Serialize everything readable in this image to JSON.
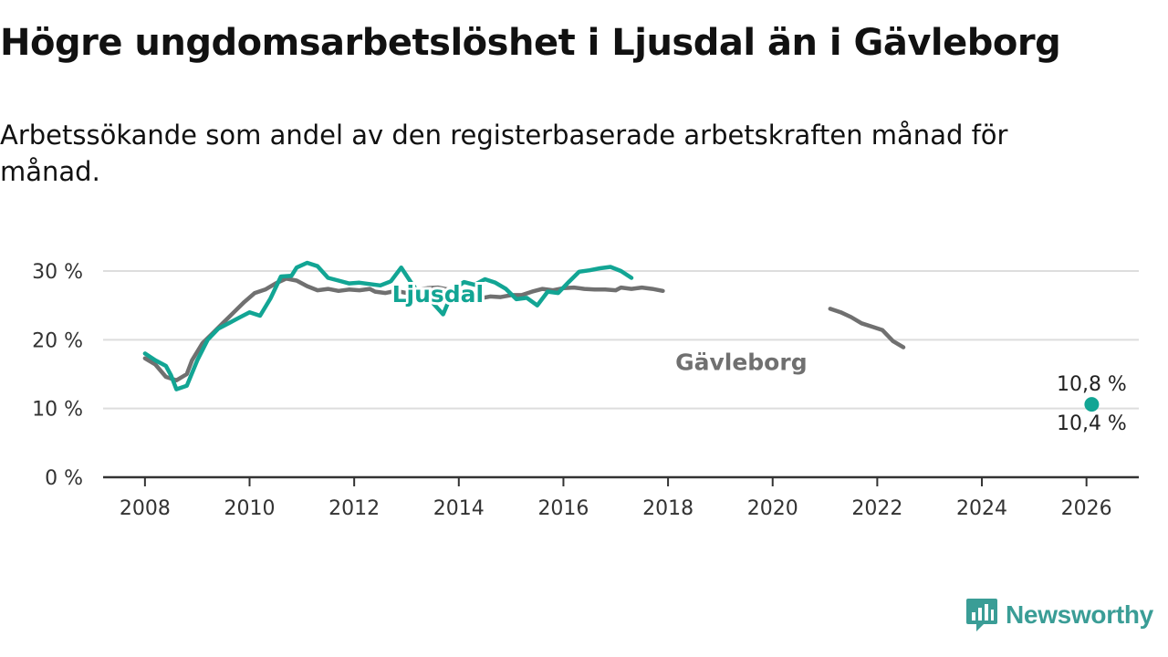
{
  "header": {
    "title": "Högre ungdomsarbetslöshet i Ljusdal än i Gävleborg",
    "subtitle": "Arbetssökande som andel av den registerbaserade arbetskraften månad för månad."
  },
  "brand": {
    "name": "Newsworthy",
    "icon": "newsworthy-logo-icon"
  },
  "colors": {
    "ljusdal": "#12a594",
    "gavleborg": "#707070",
    "grid": "#dddddd",
    "axis": "#333333"
  },
  "chart_data": {
    "type": "line",
    "title": "Högre ungdomsarbetslöshet i Ljusdal än i Gävleborg",
    "xlim": [
      2007.2,
      2027.0
    ],
    "ylim": [
      0,
      30
    ],
    "x_ticks": [
      2008,
      2010,
      2012,
      2014,
      2016,
      2018,
      2020,
      2022,
      2024,
      2026
    ],
    "x_tick_labels": [
      "2008",
      "2010",
      "2012",
      "2014",
      "2016",
      "2018",
      "2020",
      "2022",
      "2024",
      "2026"
    ],
    "y_ticks": [
      0,
      10,
      20,
      30
    ],
    "y_tick_labels": [
      "0 %",
      "10 %",
      "20 %",
      "30 %"
    ],
    "grid": true,
    "series": [
      {
        "name": "Gävleborg",
        "color": "#707070",
        "label": {
          "text": "Gävleborg",
          "x": 2019.4,
          "y": 15.6
        },
        "end_label": "10,4 %",
        "segments": [
          [
            [
              2008.0,
              17.3
            ],
            [
              2008.2,
              16.4
            ],
            [
              2008.4,
              14.6
            ],
            [
              2008.6,
              14.1
            ],
            [
              2008.8,
              15.0
            ],
            [
              2008.9,
              17.0
            ],
            [
              2009.1,
              19.5
            ],
            [
              2009.3,
              21.0
            ],
            [
              2009.5,
              22.5
            ],
            [
              2009.7,
              24.0
            ],
            [
              2009.9,
              25.5
            ],
            [
              2010.1,
              26.8
            ],
            [
              2010.3,
              27.3
            ],
            [
              2010.5,
              28.2
            ],
            [
              2010.7,
              28.9
            ],
            [
              2010.9,
              28.6
            ],
            [
              2011.1,
              27.8
            ],
            [
              2011.3,
              27.2
            ],
            [
              2011.5,
              27.4
            ],
            [
              2011.7,
              27.1
            ],
            [
              2011.9,
              27.3
            ],
            [
              2012.1,
              27.2
            ],
            [
              2012.3,
              27.4
            ],
            [
              2012.4,
              27.0
            ],
            [
              2012.6,
              26.8
            ],
            [
              2012.8,
              27.1
            ],
            [
              2013.0,
              26.8
            ],
            [
              2013.2,
              27.3
            ],
            [
              2013.4,
              27.5
            ],
            [
              2013.6,
              27.6
            ],
            [
              2013.8,
              27.3
            ],
            [
              2014.0,
              27.0
            ],
            [
              2014.2,
              26.5
            ],
            [
              2014.4,
              26.0
            ],
            [
              2014.6,
              26.3
            ],
            [
              2014.8,
              26.2
            ],
            [
              2015.0,
              26.5
            ],
            [
              2015.2,
              26.5
            ],
            [
              2015.4,
              27.0
            ],
            [
              2015.6,
              27.4
            ],
            [
              2015.8,
              27.2
            ],
            [
              2016.0,
              27.5
            ],
            [
              2016.2,
              27.6
            ],
            [
              2016.4,
              27.4
            ],
            [
              2016.6,
              27.3
            ],
            [
              2016.8,
              27.3
            ],
            [
              2017.0,
              27.2
            ],
            [
              2017.1,
              27.6
            ],
            [
              2017.3,
              27.4
            ],
            [
              2017.5,
              27.6
            ],
            [
              2017.7,
              27.4
            ],
            [
              2017.9,
              27.1
            ]
          ],
          [
            [
              2021.1,
              24.5
            ],
            [
              2021.3,
              24.0
            ],
            [
              2021.5,
              23.3
            ],
            [
              2021.7,
              22.4
            ],
            [
              2021.9,
              21.9
            ],
            [
              2022.1,
              21.4
            ],
            [
              2022.3,
              19.8
            ],
            [
              2022.5,
              18.9
            ]
          ],
          [
            [
              2026.0,
              10.4
            ]
          ]
        ]
      },
      {
        "name": "Ljusdal",
        "color": "#12a594",
        "label": {
          "text": "Ljusdal",
          "x": 2013.6,
          "y": 25.5
        },
        "end_label": "10,8 %",
        "segments": [
          [
            [
              2008.0,
              18.0
            ],
            [
              2008.2,
              17.0
            ],
            [
              2008.4,
              16.2
            ],
            [
              2008.5,
              14.8
            ],
            [
              2008.6,
              12.8
            ],
            [
              2008.8,
              13.3
            ],
            [
              2009.0,
              17.0
            ],
            [
              2009.2,
              20.0
            ],
            [
              2009.4,
              21.6
            ],
            [
              2009.6,
              22.4
            ],
            [
              2009.8,
              23.2
            ],
            [
              2010.0,
              24.0
            ],
            [
              2010.2,
              23.5
            ],
            [
              2010.4,
              26.0
            ],
            [
              2010.6,
              29.2
            ],
            [
              2010.8,
              29.3
            ],
            [
              2010.9,
              30.5
            ],
            [
              2011.1,
              31.2
            ],
            [
              2011.3,
              30.7
            ],
            [
              2011.5,
              29.0
            ],
            [
              2011.7,
              28.6
            ],
            [
              2011.9,
              28.2
            ],
            [
              2012.1,
              28.3
            ],
            [
              2012.3,
              28.1
            ],
            [
              2012.5,
              27.9
            ],
            [
              2012.7,
              28.5
            ],
            [
              2012.9,
              30.5
            ],
            [
              2013.1,
              28.2
            ],
            [
              2013.3,
              26.2
            ],
            [
              2013.5,
              25.4
            ],
            [
              2013.7,
              23.7
            ],
            [
              2013.9,
              27.3
            ],
            [
              2014.1,
              28.4
            ],
            [
              2014.3,
              28.0
            ],
            [
              2014.5,
              28.8
            ],
            [
              2014.7,
              28.3
            ],
            [
              2014.9,
              27.4
            ],
            [
              2015.1,
              25.9
            ],
            [
              2015.3,
              26.1
            ],
            [
              2015.5,
              25.0
            ],
            [
              2015.7,
              27.0
            ],
            [
              2015.9,
              26.8
            ],
            [
              2016.1,
              28.4
            ],
            [
              2016.3,
              29.9
            ],
            [
              2016.5,
              30.1
            ],
            [
              2016.7,
              30.4
            ],
            [
              2016.9,
              30.6
            ],
            [
              2017.1,
              30.0
            ],
            [
              2017.3,
              29.0
            ]
          ]
        ]
      }
    ]
  }
}
